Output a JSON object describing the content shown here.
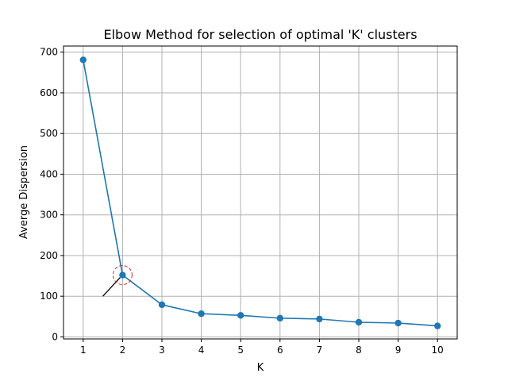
{
  "chart_data": {
    "type": "line",
    "title": "Elbow Method for selection of optimal 'K' clusters",
    "xlabel": "K",
    "ylabel": "Averge Dispersion",
    "x": [
      1,
      2,
      3,
      4,
      5,
      6,
      7,
      8,
      9,
      10
    ],
    "series": [
      {
        "values": [
          681,
          152,
          79,
          57,
          53,
          46,
          44,
          36,
          34,
          27
        ],
        "color": "#1f77b4",
        "marker": "circle"
      }
    ],
    "xticks": [
      "1",
      "2",
      "3",
      "4",
      "5",
      "6",
      "7",
      "8",
      "9",
      "10"
    ],
    "yticks": [
      "0",
      "100",
      "200",
      "300",
      "400",
      "500",
      "600",
      "700"
    ],
    "xlim": [
      0.5,
      10.5
    ],
    "ylim": [
      -5,
      715
    ],
    "grid": true,
    "annotation": {
      "x": 2,
      "y": 152,
      "highlight": "dashed-circle",
      "circle_color": "#d62728",
      "arrow_from": [
        1.5,
        100
      ]
    }
  }
}
